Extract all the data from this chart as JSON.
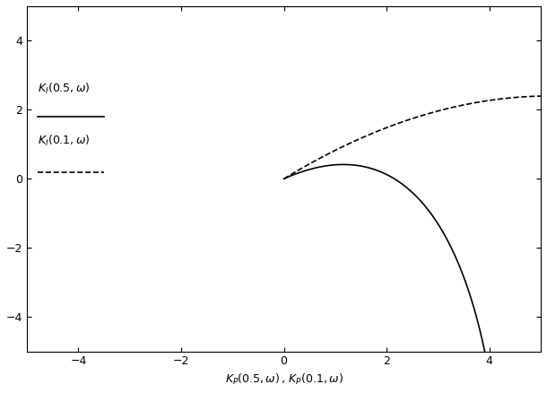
{
  "title": "",
  "xlabel_text": "K_P(0.5,\\omega), K_P(0.1,\\omega)",
  "xlim": [
    -5,
    5
  ],
  "ylim": [
    -5,
    5
  ],
  "xticks": [
    -4,
    -2,
    0,
    2,
    4
  ],
  "yticks": [
    -4,
    -2,
    0,
    2,
    4
  ],
  "background_color": "#ffffff",
  "line_color": "#000000",
  "m_values": [
    0.5,
    0.1
  ],
  "linestyles": [
    "-",
    "--"
  ],
  "legend_text_1": "K_I(0.5,ω)",
  "legend_text_2": "K_I(0.1,ω)",
  "omega_max": 30,
  "n_points": 5000
}
